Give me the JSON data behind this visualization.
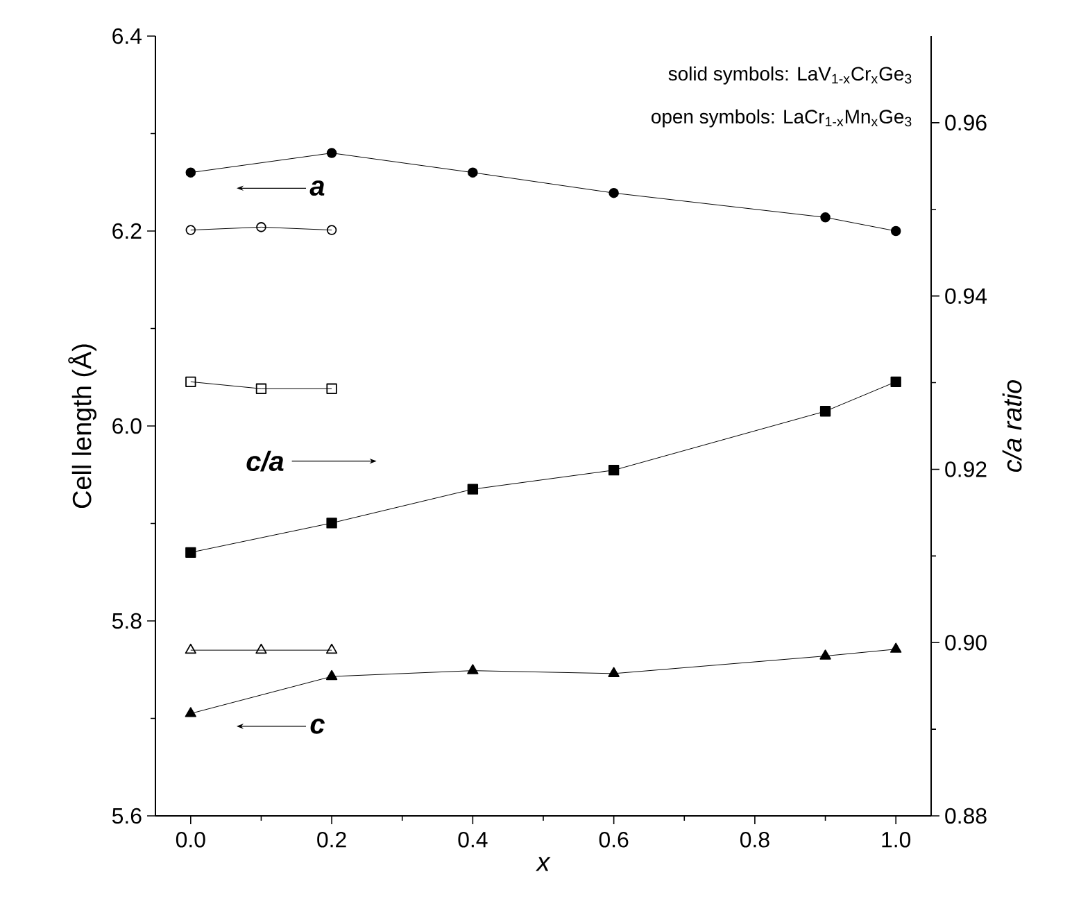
{
  "chart_data": {
    "type": "line",
    "xlabel": "x",
    "ylabel": "Cell length (Å)",
    "y2label": "c/a ratio",
    "xlim": [
      -0.05,
      1.05
    ],
    "xticks": [
      {
        "value": 0,
        "label": "0.0"
      },
      {
        "value": 0.2,
        "label": "0.2"
      },
      {
        "value": 0.4,
        "label": "0.4"
      },
      {
        "value": 0.6,
        "label": "0.6"
      },
      {
        "value": 0.8,
        "label": "0.8"
      },
      {
        "value": 1,
        "label": "1.0"
      }
    ],
    "ylim": [
      5.6,
      6.4
    ],
    "yticks": [
      5.6,
      5.8,
      {
        "value": 6,
        "label": "6.0"
      },
      6.2,
      6.4
    ],
    "y2lim": [
      0.88,
      0.97
    ],
    "y2ticks": [
      0.88,
      {
        "value": 0.9,
        "label": "0.90"
      },
      0.92,
      0.94,
      0.96
    ],
    "line_style": "solid",
    "series": [
      {
        "color": "#000000",
        "marker": "circle",
        "x": [
          0,
          0.2,
          0.4,
          0.6,
          0.9,
          1.0
        ],
        "values": [
          6.26,
          6.28,
          6.26,
          6.239,
          6.214,
          6.2
        ]
      },
      {
        "color": "#000000",
        "marker": "circle",
        "x": [
          0,
          0.1,
          0.2
        ],
        "values": [
          6.201,
          6.204,
          6.201
        ]
      },
      {
        "color": "#000000",
        "marker": "square",
        "axis": "y2",
        "x": [
          0,
          0.2,
          0.4,
          0.6,
          0.9,
          1.0
        ],
        "values": [
          0.9104,
          0.9138,
          0.9177,
          0.9199,
          0.9267,
          0.9301
        ]
      },
      {
        "color": "#000000",
        "marker": "square",
        "axis": "y2",
        "x": [
          0,
          0.1,
          0.2
        ],
        "values": [
          0.9301,
          0.9293,
          0.9293
        ]
      },
      {
        "color": "#000000",
        "marker": "triangle",
        "x": [
          0,
          0.2,
          0.4,
          0.6,
          0.9,
          1.0
        ],
        "values": [
          5.705,
          5.743,
          5.749,
          5.746,
          5.764,
          5.771
        ]
      },
      {
        "color": "#000000",
        "marker": "triangle",
        "x": [
          0,
          0.1,
          0.2
        ],
        "values": [
          5.77,
          5.77,
          5.77
        ]
      }
    ],
    "annotations": [
      "solid symbols: LaV$_{1-x}$Cr$_{x}$Ge$_{3}$",
      "open symbols: LaCr$_{1-x}$Mn$_{x}$Ge$_{3}$",
      "a",
      "c/a",
      "c"
    ]
  }
}
